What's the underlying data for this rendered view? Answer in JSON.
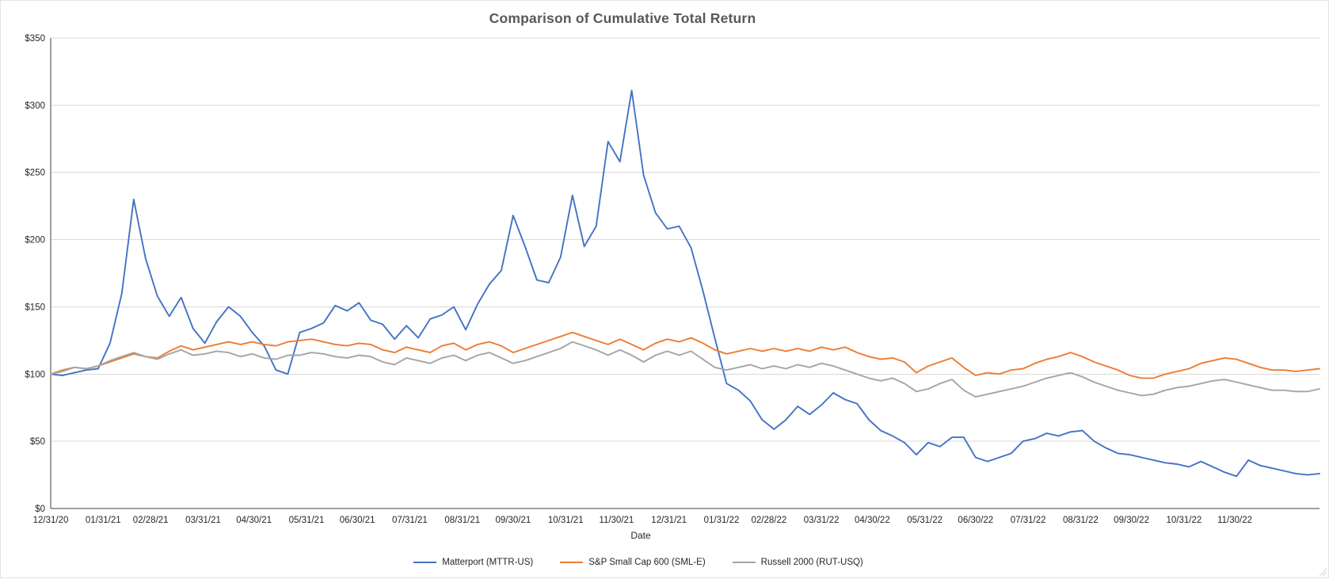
{
  "chart_data": {
    "type": "line",
    "title": "Comparison of Cumulative Total Return",
    "xlabel": "Date",
    "ylabel": "",
    "ylim": [
      0,
      350
    ],
    "grid": "horizontal",
    "legend_position": "bottom",
    "y_tick_values": [
      0,
      50,
      100,
      150,
      200,
      250,
      300,
      350
    ],
    "y_tick_labels": [
      "$0",
      "$50",
      "$100",
      "$150",
      "$200",
      "$250",
      "$300",
      "$350"
    ],
    "x_tick_labels": [
      "12/31/20",
      "01/31/21",
      "02/28/21",
      "03/31/21",
      "04/30/21",
      "05/31/21",
      "06/30/21",
      "07/31/21",
      "08/31/21",
      "09/30/21",
      "10/31/21",
      "11/30/21",
      "12/31/21",
      "01/31/22",
      "02/28/22",
      "03/31/22",
      "04/30/22",
      "05/31/22",
      "06/30/22",
      "07/31/22",
      "08/31/22",
      "09/30/22",
      "10/31/22",
      "11/30/22"
    ],
    "x_tick_days": [
      0,
      31,
      59,
      90,
      120,
      151,
      181,
      212,
      243,
      273,
      304,
      334,
      365,
      396,
      424,
      455,
      485,
      516,
      546,
      577,
      608,
      638,
      669,
      699
    ],
    "x_unit": "days since 12/31/2020",
    "sample_interval_days": 7,
    "x_total_days": 749,
    "start_value_dollars": 100,
    "series": [
      {
        "name": "Matterport (MTTR-US)",
        "color": "#4472C4",
        "values": [
          100,
          99,
          101,
          103,
          104,
          123,
          160,
          230,
          186,
          158,
          143,
          157,
          134,
          123,
          139,
          150,
          143,
          131,
          121,
          103,
          100,
          131,
          134,
          138,
          151,
          147,
          153,
          140,
          137,
          126,
          136,
          127,
          141,
          144,
          150,
          133,
          152,
          167,
          177,
          218,
          195,
          170,
          168,
          187,
          233,
          195,
          210,
          273,
          258,
          311,
          248,
          220,
          208,
          210,
          194,
          162,
          127,
          93,
          88,
          80,
          66,
          59,
          66,
          76,
          70,
          77,
          86,
          81,
          78,
          66,
          58,
          54,
          49,
          40,
          49,
          46,
          53,
          53,
          38,
          35,
          38,
          41,
          50,
          52,
          56,
          54,
          57,
          58,
          50,
          45,
          41,
          40,
          38,
          36,
          34,
          33,
          31,
          35,
          31,
          27,
          24,
          36,
          32,
          30,
          28,
          26,
          25,
          26
        ]
      },
      {
        "name": "S&P Small Cap 600 (SML-E)",
        "color": "#ED7D31",
        "values": [
          100,
          103,
          105,
          104,
          106,
          109,
          112,
          115,
          113,
          112,
          117,
          121,
          118,
          120,
          122,
          124,
          122,
          124,
          122,
          121,
          124,
          125,
          126,
          124,
          122,
          121,
          123,
          122,
          118,
          116,
          120,
          118,
          116,
          121,
          123,
          118,
          122,
          124,
          121,
          116,
          119,
          122,
          125,
          128,
          131,
          128,
          125,
          122,
          126,
          122,
          118,
          123,
          126,
          124,
          127,
          123,
          118,
          115,
          117,
          119,
          117,
          119,
          117,
          119,
          117,
          120,
          118,
          120,
          116,
          113,
          111,
          112,
          109,
          101,
          106,
          109,
          112,
          105,
          99,
          101,
          100,
          103,
          104,
          108,
          111,
          113,
          116,
          113,
          109,
          106,
          103,
          99,
          97,
          97,
          100,
          102,
          104,
          108,
          110,
          112,
          111,
          108,
          105,
          103,
          103,
          102,
          103,
          104
        ]
      },
      {
        "name": "Russell 2000 (RUT-USQ)",
        "color": "#A5A5A5",
        "values": [
          100,
          102,
          105,
          104,
          106,
          110,
          113,
          116,
          113,
          111,
          115,
          118,
          114,
          115,
          117,
          116,
          113,
          115,
          112,
          111,
          114,
          114,
          116,
          115,
          113,
          112,
          114,
          113,
          109,
          107,
          112,
          110,
          108,
          112,
          114,
          110,
          114,
          116,
          112,
          108,
          110,
          113,
          116,
          119,
          124,
          121,
          118,
          114,
          118,
          114,
          109,
          114,
          117,
          114,
          117,
          111,
          105,
          103,
          105,
          107,
          104,
          106,
          104,
          107,
          105,
          108,
          106,
          103,
          100,
          97,
          95,
          97,
          93,
          87,
          89,
          93,
          96,
          88,
          83,
          85,
          87,
          89,
          91,
          94,
          97,
          99,
          101,
          98,
          94,
          91,
          88,
          86,
          84,
          85,
          88,
          90,
          91,
          93,
          95,
          96,
          94,
          92,
          90,
          88,
          88,
          87,
          87,
          89
        ]
      }
    ]
  },
  "style": {
    "title_color": "#595959",
    "axis_text_color": "#262626",
    "gridline_color": "#D9D9D9",
    "axis_line_color": "#404040",
    "background": "#FFFFFF"
  }
}
